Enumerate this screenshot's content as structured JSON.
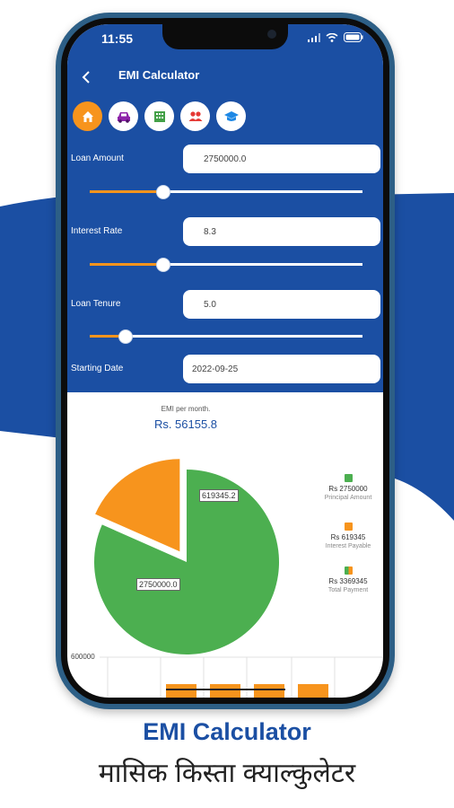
{
  "status_bar": {
    "time": "11:55"
  },
  "header": {
    "title": "EMI Calculator"
  },
  "categories": [
    "home-icon",
    "car-icon",
    "building-icon",
    "users-icon",
    "education-icon"
  ],
  "form": {
    "loan_amount": {
      "label": "Loan Amount",
      "value": "2750000.0",
      "slider_fraction": 0.27
    },
    "interest_rate": {
      "label": "Interest Rate",
      "value": "8.3",
      "slider_fraction": 0.27
    },
    "loan_tenure": {
      "label": "Loan Tenure",
      "value": "5.0",
      "slider_fraction": 0.13
    },
    "starting_date": {
      "label": "Starting Date",
      "value": "2022-09-25"
    }
  },
  "result": {
    "emi_label": "EMI per month.",
    "emi_value": "Rs. 56155.8"
  },
  "chart_data": [
    {
      "type": "pie",
      "slices": [
        {
          "label": "2750000.0",
          "value": 2750000,
          "color": "#4caf50"
        },
        {
          "label": "619345.2",
          "value": 619345.2,
          "color": "#f7941d"
        }
      ]
    },
    {
      "type": "bar",
      "y_tick_labels": [
        "600000"
      ]
    }
  ],
  "legend": [
    {
      "value": "Rs 2750000",
      "desc": "Principal Amount",
      "color": "#4caf50"
    },
    {
      "value": "Rs 619345",
      "desc": "Interest Payable",
      "color": "#f7941d"
    },
    {
      "value": "Rs 3369345",
      "desc": "Total Payment",
      "color": "#8bc34a"
    }
  ],
  "promo": {
    "title": "EMI Calculator",
    "subtitle": "मासिक किस्ता क्याल्कुलेटर"
  },
  "colors": {
    "brand_blue": "#1b4fa3",
    "accent_orange": "#f7941d",
    "green": "#4caf50"
  }
}
